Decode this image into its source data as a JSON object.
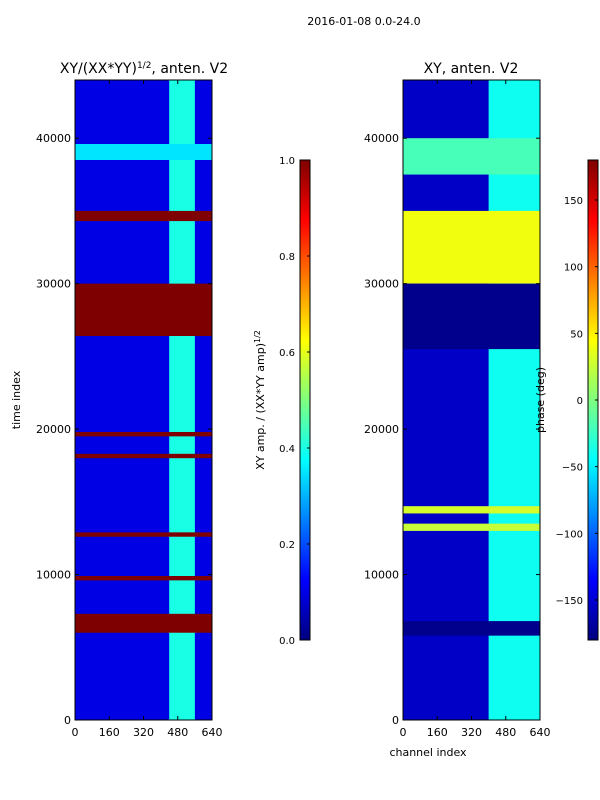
{
  "suptitle": "2016-01-08 0.0-24.0",
  "colors": {
    "jet": [
      "#00007f",
      "#0000ff",
      "#007fff",
      "#00ffff",
      "#7fff7f",
      "#ffff00",
      "#ff7f00",
      "#ff0000",
      "#7f0000"
    ]
  },
  "chart_data": [
    {
      "type": "heatmap",
      "title": "XY/(XX*YY)",
      "title_superscript": "1/2",
      "title_suffix": ", anten. V2",
      "xlabel": "",
      "ylabel": "time index",
      "xlim": [
        0,
        640
      ],
      "ylim": [
        0,
        44000
      ],
      "xticks": [
        0,
        160,
        320,
        480,
        640
      ],
      "yticks": [
        0,
        10000,
        20000,
        30000,
        40000
      ],
      "xtick_labels": [
        "0",
        "160",
        "320",
        "480",
        "640"
      ],
      "ytick_labels": [
        "0",
        "10000",
        "20000",
        "30000",
        "40000"
      ],
      "colorbar": {
        "label": "XY amp. / (XX*YY amp)",
        "label_superscript": "1/2",
        "range": [
          0.0,
          1.0
        ],
        "ticks": [
          0.0,
          0.2,
          0.4,
          0.6,
          0.8,
          1.0
        ],
        "tick_labels": [
          "0.0",
          "0.2",
          "0.4",
          "0.6",
          "0.8",
          "1.0"
        ]
      },
      "regions": [
        {
          "t0": 0,
          "t1": 44000,
          "c0": 0,
          "c1": 640,
          "value": 0.1
        },
        {
          "t0": 0,
          "t1": 44000,
          "c0": 440,
          "c1": 560,
          "value": 0.4
        },
        {
          "t0": 38500,
          "t1": 39600,
          "c0": 0,
          "c1": 640,
          "value": 0.35
        },
        {
          "t0": 34300,
          "t1": 35000,
          "c0": 0,
          "c1": 640,
          "value": 1.0
        },
        {
          "t0": 26400,
          "t1": 30000,
          "c0": 0,
          "c1": 640,
          "value": 1.0
        },
        {
          "t0": 6000,
          "t1": 7300,
          "c0": 0,
          "c1": 640,
          "value": 1.0
        },
        {
          "t0": 19500,
          "t1": 19800,
          "c0": 0,
          "c1": 640,
          "value": 1.0
        },
        {
          "t0": 18000,
          "t1": 18300,
          "c0": 0,
          "c1": 640,
          "value": 1.0
        },
        {
          "t0": 12600,
          "t1": 12900,
          "c0": 0,
          "c1": 640,
          "value": 1.0
        },
        {
          "t0": 9600,
          "t1": 9900,
          "c0": 0,
          "c1": 640,
          "value": 1.0
        }
      ]
    },
    {
      "type": "heatmap",
      "title": "XY, anten. V2",
      "xlabel": "channel index",
      "ylabel": "",
      "xlim": [
        0,
        640
      ],
      "ylim": [
        0,
        44000
      ],
      "xticks": [
        0,
        160,
        320,
        480,
        640
      ],
      "yticks": [
        0,
        10000,
        20000,
        30000,
        40000
      ],
      "xtick_labels": [
        "0",
        "160",
        "320",
        "480",
        "640"
      ],
      "ytick_labels": [
        "0",
        "10000",
        "20000",
        "30000",
        "40000"
      ],
      "colorbar": {
        "label": "phase (deg)",
        "range": [
          -180,
          180
        ],
        "ticks": [
          -150,
          -100,
          -50,
          0,
          50,
          100,
          150
        ],
        "tick_labels": [
          "−150",
          "−100",
          "−50",
          "0",
          "50",
          "100",
          "150"
        ]
      },
      "regions": [
        {
          "t0": 0,
          "t1": 44000,
          "c0": 0,
          "c1": 640,
          "value": -155
        },
        {
          "t0": 0,
          "t1": 44000,
          "c0": 400,
          "c1": 640,
          "value": -40
        },
        {
          "t0": 30000,
          "t1": 35000,
          "c0": 0,
          "c1": 640,
          "value": 40
        },
        {
          "t0": 37500,
          "t1": 40000,
          "c0": 0,
          "c1": 640,
          "value": -20
        },
        {
          "t0": 25500,
          "t1": 30000,
          "c0": 0,
          "c1": 640,
          "value": -175
        },
        {
          "t0": 5800,
          "t1": 6800,
          "c0": 0,
          "c1": 640,
          "value": -175
        },
        {
          "t0": 14200,
          "t1": 14700,
          "c0": 0,
          "c1": 640,
          "value": 30
        },
        {
          "t0": 13000,
          "t1": 13500,
          "c0": 0,
          "c1": 640,
          "value": 25
        }
      ]
    }
  ]
}
